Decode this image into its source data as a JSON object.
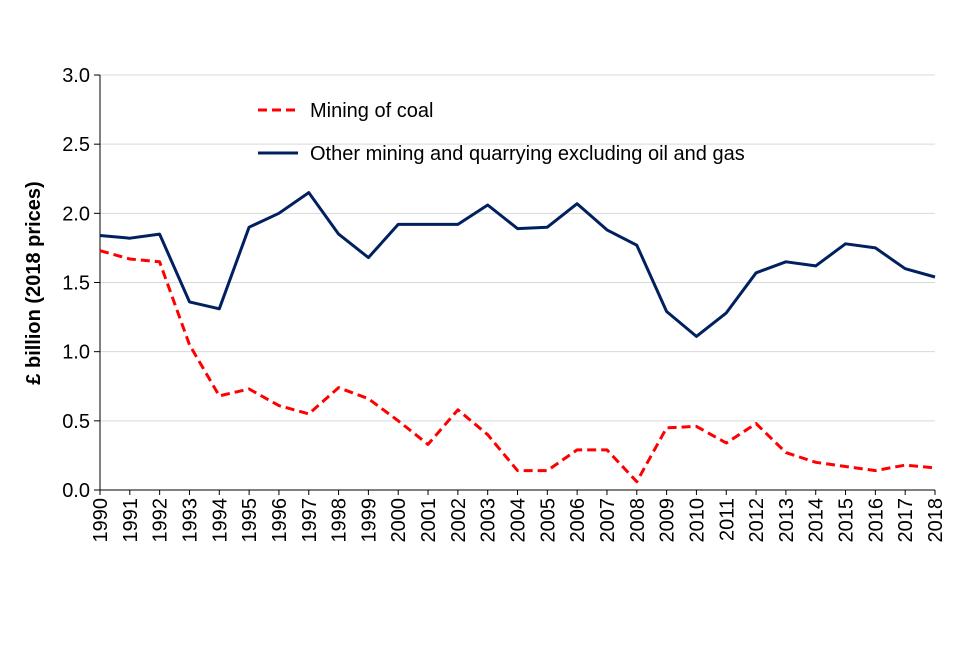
{
  "chart_data": {
    "type": "line",
    "title": "",
    "xlabel": "",
    "ylabel": "£ billion (2018 prices)",
    "ylim": [
      0,
      3.0
    ],
    "yticks": [
      "0.0",
      "0.5",
      "1.0",
      "1.5",
      "2.0",
      "2.5",
      "3.0"
    ],
    "grid": true,
    "legend_position": "top-center",
    "x": [
      "1990",
      "1991",
      "1992",
      "1993",
      "1994",
      "1995",
      "1996",
      "1997",
      "1998",
      "1999",
      "2000",
      "2001",
      "2002",
      "2003",
      "2004",
      "2005",
      "2006",
      "2007",
      "2008",
      "2009",
      "2010",
      "2011",
      "2012",
      "2013",
      "2014",
      "2015",
      "2016",
      "2017",
      "2018"
    ],
    "series": [
      {
        "name": "Mining of coal",
        "color": "#ff0000",
        "style": "dashed",
        "values": [
          1.73,
          1.67,
          1.65,
          1.05,
          0.68,
          0.73,
          0.61,
          0.55,
          0.74,
          0.66,
          0.5,
          0.33,
          0.58,
          0.4,
          0.14,
          0.14,
          0.29,
          0.29,
          0.06,
          0.45,
          0.46,
          0.34,
          0.48,
          0.27,
          0.2,
          0.17,
          0.14,
          0.18,
          0.16
        ]
      },
      {
        "name": "Other mining and quarrying excluding oil and gas",
        "color": "#002060",
        "style": "solid",
        "values": [
          1.84,
          1.82,
          1.85,
          1.36,
          1.31,
          1.9,
          2.0,
          2.15,
          1.85,
          1.68,
          1.92,
          1.92,
          1.92,
          2.06,
          1.89,
          1.9,
          2.07,
          1.88,
          1.77,
          1.29,
          1.11,
          1.28,
          1.57,
          1.65,
          1.62,
          1.78,
          1.75,
          1.6,
          1.54
        ]
      }
    ]
  }
}
